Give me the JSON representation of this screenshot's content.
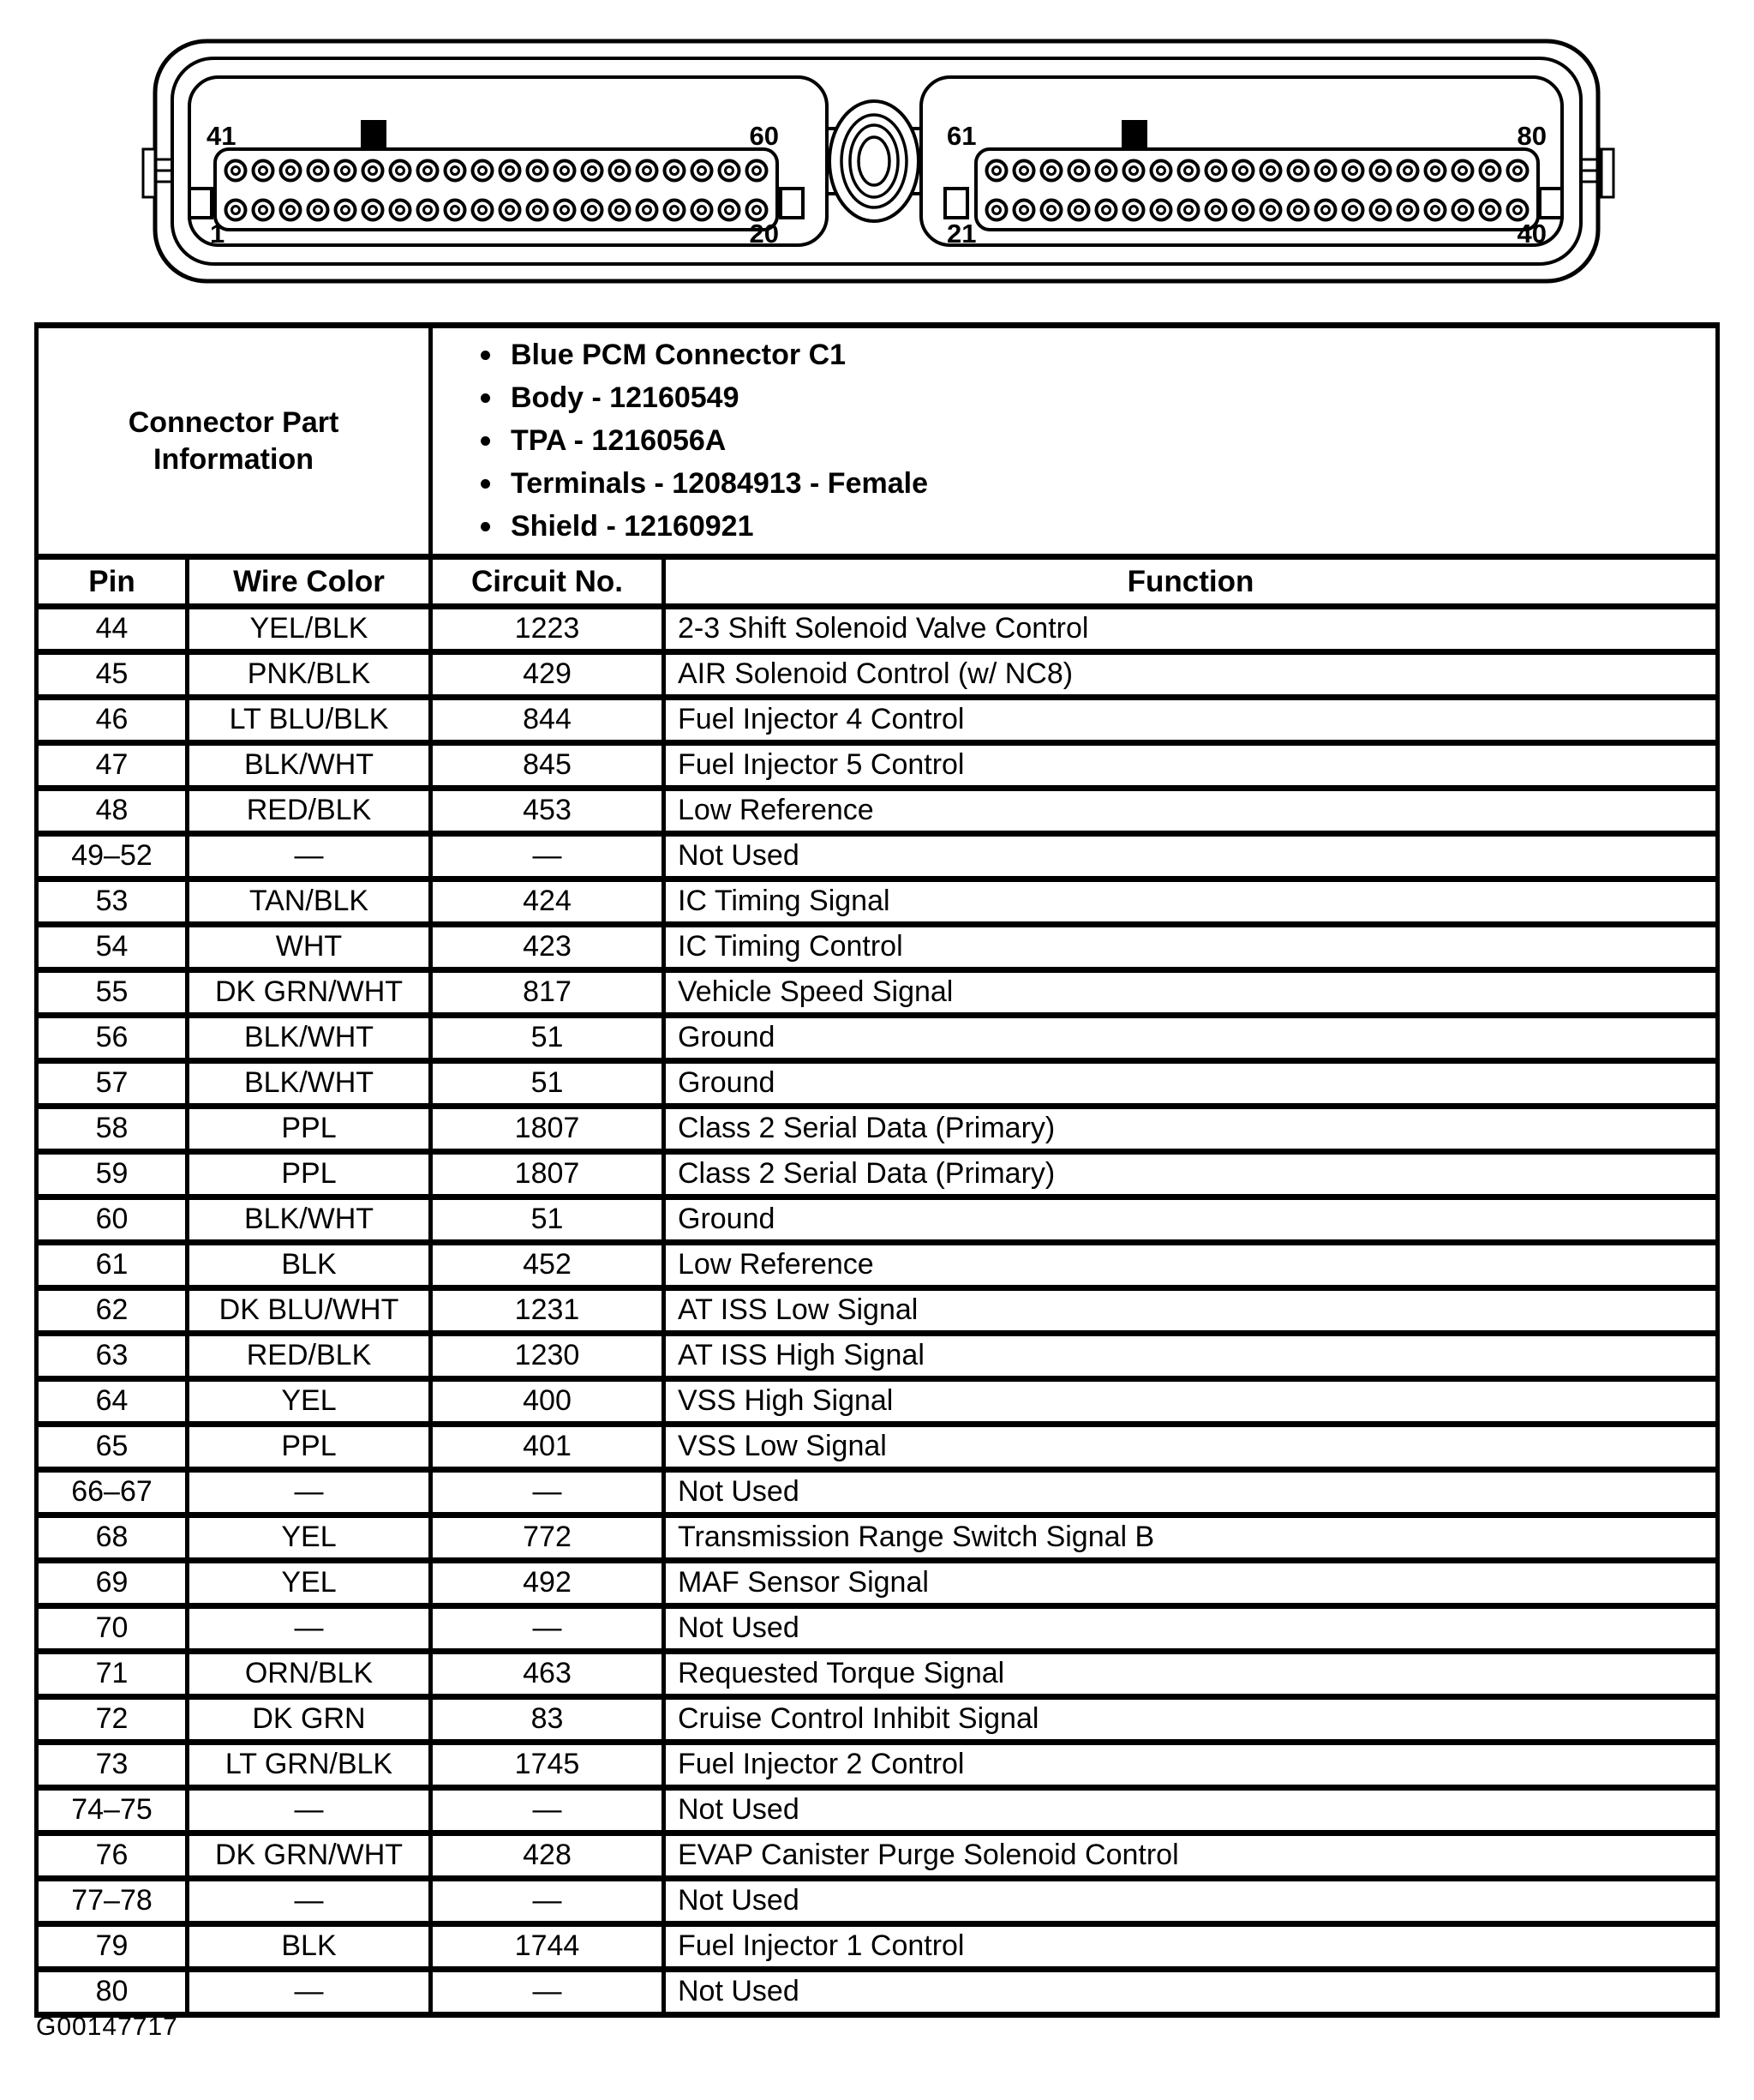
{
  "page": {
    "figure_id": "G00147717",
    "background": "#ffffff",
    "ink": "#000000"
  },
  "connector_diagram": {
    "pins_per_row": 20,
    "rows_per_block": 2,
    "blocks": [
      {
        "corner_labels": {
          "top_left": "41",
          "top_right": "60",
          "bottom_left": "1",
          "bottom_right": "20"
        }
      },
      {
        "corner_labels": {
          "top_left": "61",
          "top_right": "80",
          "bottom_left": "21",
          "bottom_right": "40"
        }
      }
    ]
  },
  "info_panel": {
    "title": "Connector Part Information",
    "bullets": [
      "Blue PCM Connector C1",
      "Body - 12160549",
      "TPA - 1216056A",
      "Terminals - 12084913 - Female",
      "Shield - 12160921"
    ]
  },
  "pinout_table": {
    "headers": [
      "Pin",
      "Wire Color",
      "Circuit No.",
      "Function"
    ],
    "rows": [
      [
        "44",
        "YEL/BLK",
        "1223",
        "2-3 Shift Solenoid Valve Control"
      ],
      [
        "45",
        "PNK/BLK",
        "429",
        "AIR Solenoid Control (w/ NC8)"
      ],
      [
        "46",
        "LT BLU/BLK",
        "844",
        "Fuel Injector 4 Control"
      ],
      [
        "47",
        "BLK/WHT",
        "845",
        "Fuel Injector 5 Control"
      ],
      [
        "48",
        "RED/BLK",
        "453",
        "Low Reference"
      ],
      [
        "49–52",
        "—",
        "—",
        "Not Used"
      ],
      [
        "53",
        "TAN/BLK",
        "424",
        "IC Timing Signal"
      ],
      [
        "54",
        "WHT",
        "423",
        "IC Timing Control"
      ],
      [
        "55",
        "DK GRN/WHT",
        "817",
        "Vehicle Speed Signal"
      ],
      [
        "56",
        "BLK/WHT",
        "51",
        "Ground"
      ],
      [
        "57",
        "BLK/WHT",
        "51",
        "Ground"
      ],
      [
        "58",
        "PPL",
        "1807",
        "Class 2 Serial Data (Primary)"
      ],
      [
        "59",
        "PPL",
        "1807",
        "Class 2 Serial Data (Primary)"
      ],
      [
        "60",
        "BLK/WHT",
        "51",
        "Ground"
      ],
      [
        "61",
        "BLK",
        "452",
        "Low Reference"
      ],
      [
        "62",
        "DK BLU/WHT",
        "1231",
        "AT ISS Low Signal"
      ],
      [
        "63",
        "RED/BLK",
        "1230",
        "AT ISS High Signal"
      ],
      [
        "64",
        "YEL",
        "400",
        "VSS High Signal"
      ],
      [
        "65",
        "PPL",
        "401",
        "VSS Low Signal"
      ],
      [
        "66–67",
        "—",
        "—",
        "Not Used"
      ],
      [
        "68",
        "YEL",
        "772",
        "Transmission Range Switch Signal B"
      ],
      [
        "69",
        "YEL",
        "492",
        "MAF Sensor Signal"
      ],
      [
        "70",
        "—",
        "—",
        "Not Used"
      ],
      [
        "71",
        "ORN/BLK",
        "463",
        "Requested Torque Signal"
      ],
      [
        "72",
        "DK GRN",
        "83",
        "Cruise Control Inhibit Signal"
      ],
      [
        "73",
        "LT GRN/BLK",
        "1745",
        "Fuel Injector 2 Control"
      ],
      [
        "74–75",
        "—",
        "—",
        "Not Used"
      ],
      [
        "76",
        "DK GRN/WHT",
        "428",
        "EVAP Canister Purge Solenoid Control"
      ],
      [
        "77–78",
        "—",
        "—",
        "Not Used"
      ],
      [
        "79",
        "BLK",
        "1744",
        "Fuel Injector 1 Control"
      ],
      [
        "80",
        "—",
        "—",
        "Not Used"
      ]
    ]
  }
}
